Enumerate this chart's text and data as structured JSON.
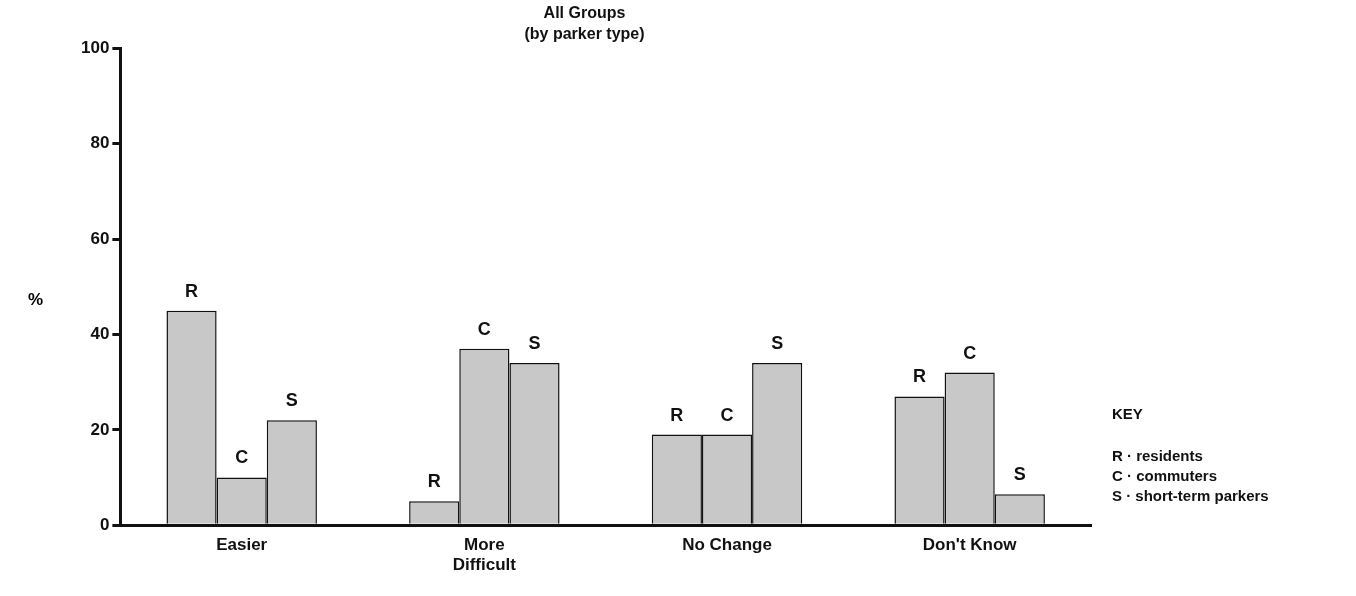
{
  "chart_data": {
    "type": "bar",
    "title": "All Groups",
    "subtitle": "(by parker type)",
    "ylabel": "%",
    "categories": [
      "Easier",
      "More Difficult",
      "No Change",
      "Don't Know"
    ],
    "series": [
      {
        "name": "R",
        "color": "#c8c8c8",
        "values": [
          45,
          5,
          19,
          27
        ]
      },
      {
        "name": "C",
        "color": "#c8c8c8",
        "values": [
          10,
          37,
          19,
          32
        ]
      },
      {
        "name": "S",
        "color": "#c8c8c8",
        "values": [
          22,
          34,
          34,
          6.5
        ]
      }
    ],
    "ylim": [
      0,
      100
    ],
    "yticks": [
      0,
      20,
      40,
      60,
      80,
      100
    ],
    "grid": false,
    "legend": false,
    "annotations": [
      "KEY",
      "R · residents",
      "C · commuters",
      "S · short-term parkers"
    ]
  }
}
